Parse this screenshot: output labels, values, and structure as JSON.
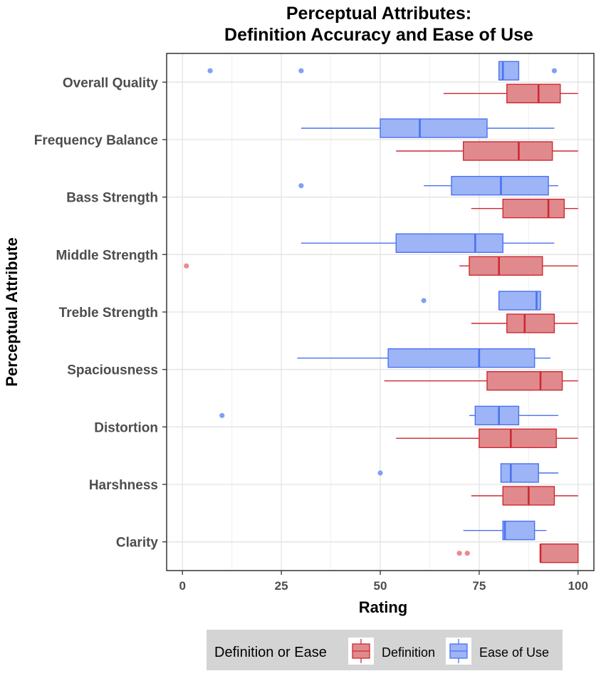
{
  "chart_data": {
    "type": "boxplot",
    "orientation": "horizontal",
    "title_line1": "Perceptual Attributes:",
    "title_line2": "Definition Accuracy and Ease of Use",
    "xlabel": "Rating",
    "ylabel": "Perceptual Attribute",
    "xlim": [
      -4,
      104
    ],
    "xticks": [
      0,
      25,
      50,
      75,
      100
    ],
    "grid": true,
    "legend": {
      "title": "Definition or Ease",
      "position": "bottom",
      "entries": [
        "Definition",
        "Ease of Use"
      ]
    },
    "colors": {
      "Definition": {
        "fill": "#e08a8e",
        "line": "#cc2a30",
        "outlier": "#e8767b"
      },
      "Ease of Use": {
        "fill": "#9db4f7",
        "line": "#4a72ee",
        "outlier": "#6b8ff2"
      }
    },
    "categories": [
      "Overall Quality",
      "Frequency Balance",
      "Bass Strength",
      "Middle Strength",
      "Treble Strength",
      "Spaciousness",
      "Distortion",
      "Harshness",
      "Clarity"
    ],
    "series": [
      {
        "name": "Ease of Use",
        "boxes": [
          {
            "whisker_low": 80,
            "q1": 80,
            "median": 81,
            "q3": 85,
            "whisker_high": 85,
            "outliers": [
              7,
              30,
              94
            ]
          },
          {
            "whisker_low": 30,
            "q1": 50,
            "median": 60,
            "q3": 77,
            "whisker_high": 94,
            "outliers": []
          },
          {
            "whisker_low": 61,
            "q1": 68,
            "median": 80.5,
            "q3": 92.5,
            "whisker_high": 95,
            "outliers": [
              30
            ]
          },
          {
            "whisker_low": 30,
            "q1": 54,
            "median": 74,
            "q3": 81,
            "whisker_high": 94,
            "outliers": []
          },
          {
            "whisker_low": 80,
            "q1": 80,
            "median": 89.5,
            "q3": 90.5,
            "whisker_high": 90.5,
            "outliers": [
              61
            ]
          },
          {
            "whisker_low": 29,
            "q1": 52,
            "median": 75,
            "q3": 89,
            "whisker_high": 93,
            "outliers": []
          },
          {
            "whisker_low": 72.5,
            "q1": 74,
            "median": 80,
            "q3": 85,
            "whisker_high": 95,
            "outliers": [
              10
            ]
          },
          {
            "whisker_low": 80.5,
            "q1": 80.5,
            "median": 83,
            "q3": 90,
            "whisker_high": 95,
            "outliers": [
              50
            ]
          },
          {
            "whisker_low": 71,
            "q1": 81,
            "median": 81.5,
            "q3": 89,
            "whisker_high": 92,
            "outliers": []
          }
        ]
      },
      {
        "name": "Definition",
        "boxes": [
          {
            "whisker_low": 66,
            "q1": 82,
            "median": 90,
            "q3": 95.5,
            "whisker_high": 100,
            "outliers": []
          },
          {
            "whisker_low": 54,
            "q1": 71,
            "median": 85,
            "q3": 93.5,
            "whisker_high": 100,
            "outliers": []
          },
          {
            "whisker_low": 73,
            "q1": 81,
            "median": 92.5,
            "q3": 96.5,
            "whisker_high": 100,
            "outliers": []
          },
          {
            "whisker_low": 70,
            "q1": 72.5,
            "median": 80,
            "q3": 91,
            "whisker_high": 100,
            "outliers": [
              1
            ]
          },
          {
            "whisker_low": 73,
            "q1": 82,
            "median": 86.5,
            "q3": 94,
            "whisker_high": 100,
            "outliers": []
          },
          {
            "whisker_low": 51,
            "q1": 77,
            "median": 90.5,
            "q3": 96,
            "whisker_high": 100,
            "outliers": []
          },
          {
            "whisker_low": 54,
            "q1": 75,
            "median": 83,
            "q3": 94.5,
            "whisker_high": 100,
            "outliers": []
          },
          {
            "whisker_low": 73,
            "q1": 81,
            "median": 87.5,
            "q3": 94,
            "whisker_high": 100,
            "outliers": []
          },
          {
            "whisker_low": 90.5,
            "q1": 90.5,
            "median": 90.5,
            "q3": 100,
            "whisker_high": 100,
            "outliers": [
              70,
              72
            ]
          }
        ]
      }
    ]
  }
}
